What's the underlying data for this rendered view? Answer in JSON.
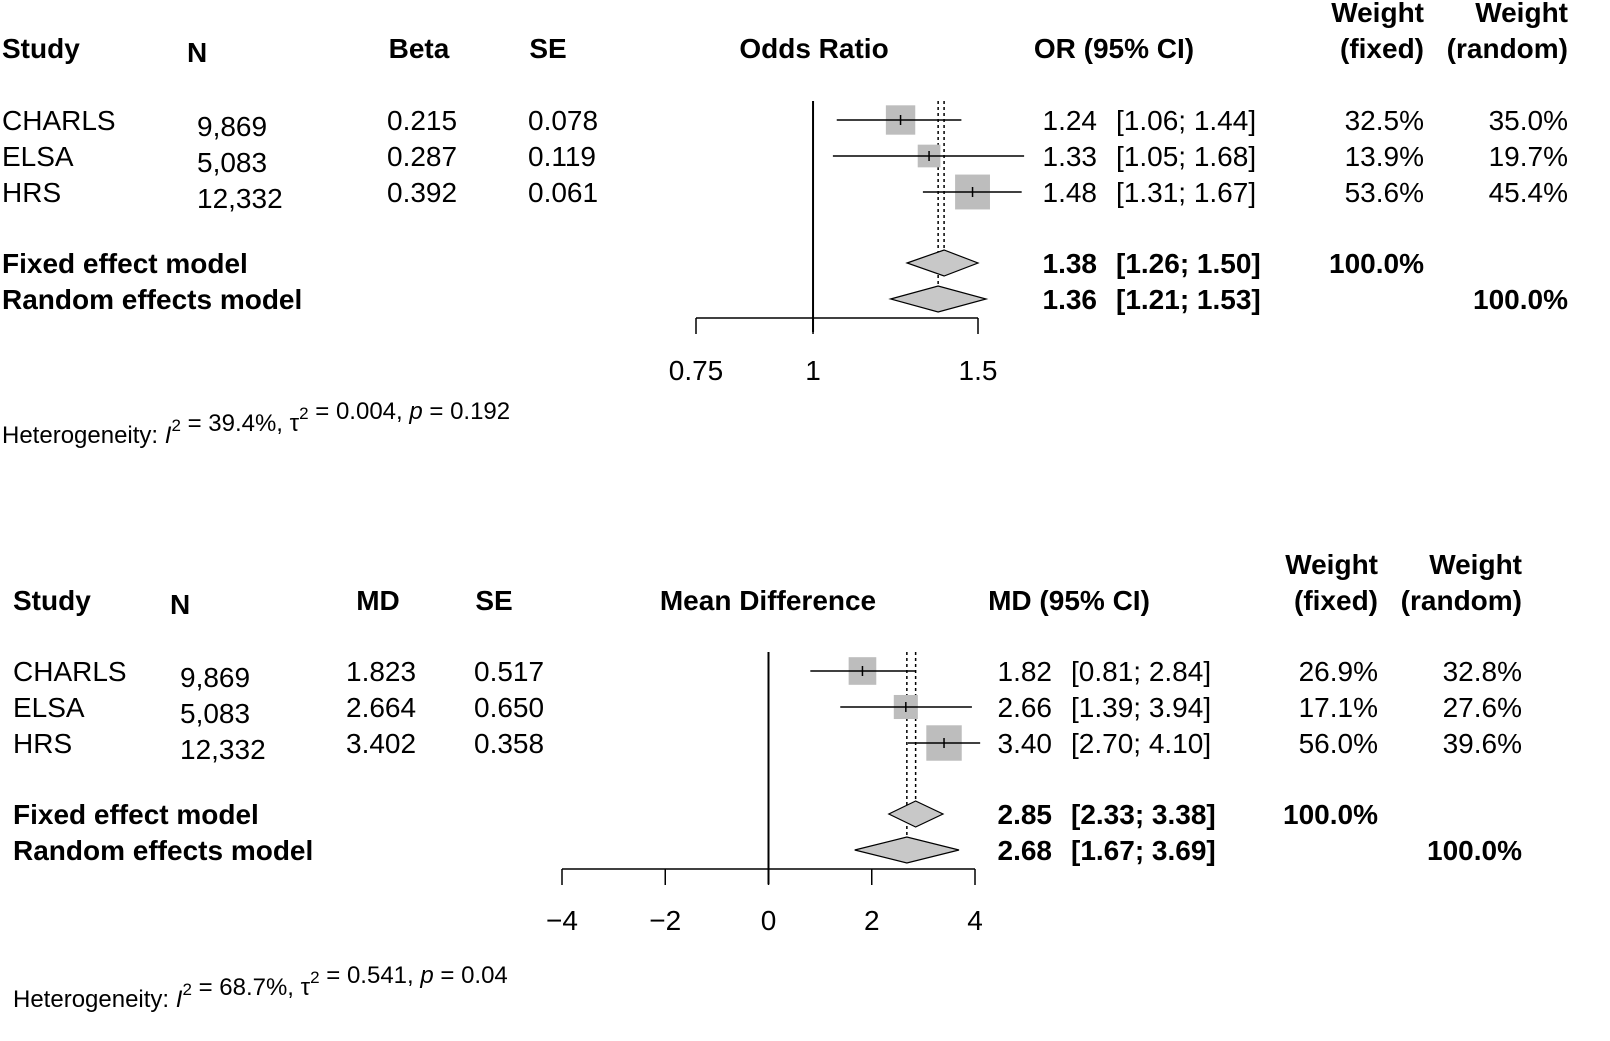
{
  "chart_data": [
    {
      "type": "forest",
      "columns": {
        "study": "Study",
        "n": "N",
        "est": "Beta",
        "se": "SE",
        "plot": "Odds Ratio",
        "ci": "OR (95% CI)",
        "wf1": "Weight",
        "wf2": "(fixed)",
        "wr1": "Weight",
        "wr2": "(random)"
      },
      "studies": [
        {
          "name": "CHARLS",
          "n": "9,869",
          "est": "0.215",
          "se": "0.078",
          "value": 1.24,
          "lo": 1.06,
          "hi": 1.44,
          "ci_est": "1.24",
          "ci_range": "[1.06; 1.44]",
          "wf": "32.5%",
          "wr": "35.0%",
          "weight": 32.5
        },
        {
          "name": "ELSA",
          "n": "5,083",
          "est": "0.287",
          "se": "0.119",
          "value": 1.33,
          "lo": 1.05,
          "hi": 1.68,
          "ci_est": "1.33",
          "ci_range": "[1.05; 1.68]",
          "wf": "13.9%",
          "wr": "19.7%",
          "weight": 13.9
        },
        {
          "name": "HRS",
          "n": "12,332",
          "est": "0.392",
          "se": "0.061",
          "value": 1.48,
          "lo": 1.31,
          "hi": 1.67,
          "ci_est": "1.48",
          "ci_range": "[1.31; 1.67]",
          "wf": "53.6%",
          "wr": "45.4%",
          "weight": 53.6
        }
      ],
      "fixed": {
        "label": "Fixed effect model",
        "value": 1.38,
        "lo": 1.26,
        "hi": 1.5,
        "ci_est": "1.38",
        "ci_range": "[1.26; 1.50]",
        "wf": "100.0%",
        "wr": ""
      },
      "random": {
        "label": "Random effects model",
        "value": 1.36,
        "lo": 1.21,
        "hi": 1.53,
        "ci_est": "1.36",
        "ci_range": "[1.21; 1.53]",
        "wf": "",
        "wr": "100.0%"
      },
      "null_value": 1,
      "log_scale": true,
      "axis": {
        "min": 0.75,
        "max": 1.5,
        "ticks": [
          0.75,
          1,
          1.5
        ],
        "tick_labels": [
          "0.75",
          "1",
          "1.5"
        ]
      },
      "heterogeneity": {
        "prefix": "Heterogeneity: ",
        "i2": "I",
        "i2_value": " = 39.4%, ",
        "tau": "τ",
        "tau_value": " = 0.004, ",
        "p": "p",
        "p_value": " = 0.192"
      }
    },
    {
      "type": "forest",
      "columns": {
        "study": "Study",
        "n": "N",
        "est": "MD",
        "se": "SE",
        "plot": "Mean Difference",
        "ci": "MD (95% CI)",
        "wf1": "Weight",
        "wf2": "(fixed)",
        "wr1": "Weight",
        "wr2": "(random)"
      },
      "studies": [
        {
          "name": "CHARLS",
          "n": "9,869",
          "est": "1.823",
          "se": "0.517",
          "value": 1.82,
          "lo": 0.81,
          "hi": 2.84,
          "ci_est": "1.82",
          "ci_range": "[0.81; 2.84]",
          "wf": "26.9%",
          "wr": "32.8%",
          "weight": 26.9
        },
        {
          "name": "ELSA",
          "n": "5,083",
          "est": "2.664",
          "se": "0.650",
          "value": 2.66,
          "lo": 1.39,
          "hi": 3.94,
          "ci_est": "2.66",
          "ci_range": "[1.39; 3.94]",
          "wf": "17.1%",
          "wr": "27.6%",
          "weight": 17.1
        },
        {
          "name": "HRS",
          "n": "12,332",
          "est": "3.402",
          "se": "0.358",
          "value": 3.4,
          "lo": 2.7,
          "hi": 4.1,
          "ci_est": "3.40",
          "ci_range": "[2.70; 4.10]",
          "wf": "56.0%",
          "wr": "39.6%",
          "weight": 56.0
        }
      ],
      "fixed": {
        "label": "Fixed effect model",
        "value": 2.85,
        "lo": 2.33,
        "hi": 3.38,
        "ci_est": "2.85",
        "ci_range": "[2.33; 3.38]",
        "wf": "100.0%",
        "wr": ""
      },
      "random": {
        "label": "Random effects model",
        "value": 2.68,
        "lo": 1.67,
        "hi": 3.69,
        "ci_est": "2.68",
        "ci_range": "[1.67; 3.69]",
        "wf": "",
        "wr": "100.0%"
      },
      "null_value": 0,
      "log_scale": false,
      "axis": {
        "min": -4,
        "max": 4,
        "ticks": [
          -4,
          -2,
          0,
          2,
          4
        ],
        "tick_labels": [
          "−4",
          "−2",
          "0",
          "2",
          "4"
        ]
      },
      "heterogeneity": {
        "prefix": "Heterogeneity: ",
        "i2": "I",
        "i2_value": " = 68.7%, ",
        "tau": "τ",
        "tau_value": " = 0.541, ",
        "p": "p",
        "p_value": " = 0.04"
      }
    }
  ],
  "colors": {
    "box": "#bdbdbd",
    "diamond": "#c8c8c8",
    "line": "#000000"
  }
}
